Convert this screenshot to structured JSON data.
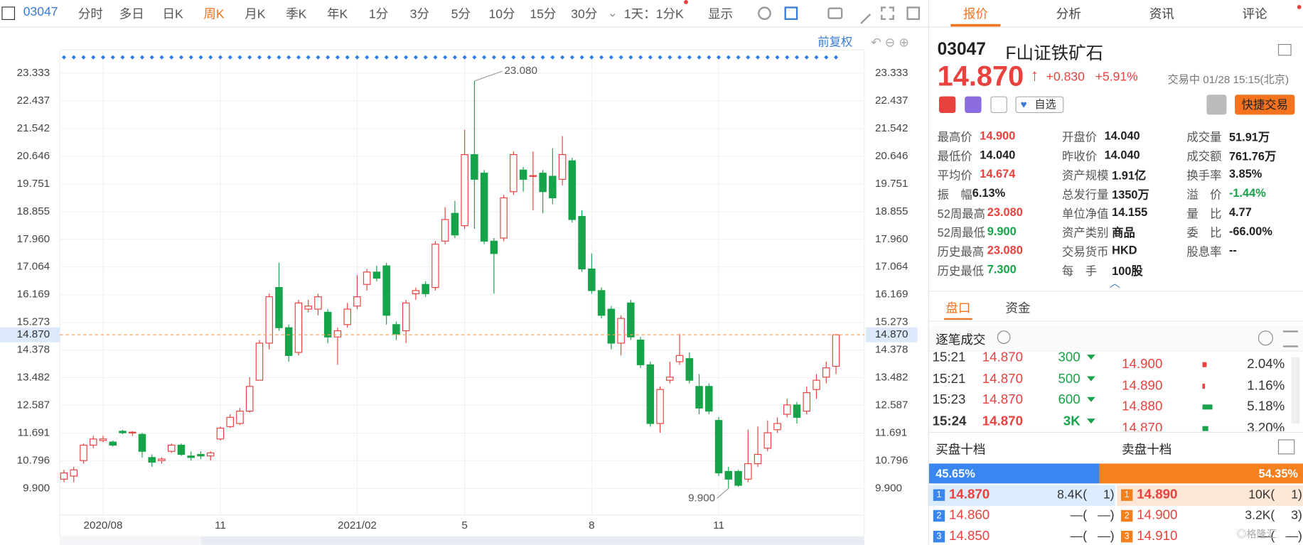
{
  "toolbar": {
    "code": "03047",
    "periods": [
      "分时",
      "多日",
      "日K",
      "周K",
      "月K",
      "季K",
      "年K",
      "1分",
      "3分",
      "5分",
      "10分",
      "15分",
      "30分"
    ],
    "active": "周K",
    "range": "1天：1分K",
    "display": "显示"
  },
  "chart": {
    "type": "candlestick",
    "adjust": "前复权",
    "ylim": [
      9.04,
      23.82
    ],
    "yticks": [
      23.333,
      22.437,
      21.542,
      20.646,
      19.751,
      18.855,
      {
        "value": 17.96,
        "label": "17.960"
      },
      17.064,
      16.169,
      15.273,
      14.378,
      13.482,
      12.587,
      11.691,
      10.796,
      {
        "value": 9.9,
        "label": "9.900"
      }
    ],
    "last": {
      "value": 14.87,
      "label": "14.870"
    },
    "max_label": "23.080",
    "min_label": "9.900",
    "up_color": "#e8413e",
    "down_color": "#17a34a",
    "categories": [
      null,
      null,
      null,
      null,
      "2020/08",
      null,
      null,
      null,
      null,
      null,
      null,
      null,
      null,
      null,
      null,
      null,
      "11",
      null,
      null,
      null,
      null,
      null,
      null,
      null,
      null,
      null,
      null,
      null,
      null,
      null,
      "2021/02",
      null,
      null,
      null,
      null,
      null,
      null,
      null,
      null,
      null,
      null,
      "5",
      null,
      null,
      null,
      null,
      null,
      null,
      null,
      null,
      null,
      null,
      null,
      null,
      "8",
      null,
      null,
      null,
      null,
      null,
      null,
      null,
      null,
      null,
      null,
      null,
      null,
      "11",
      null,
      null,
      null,
      null,
      null,
      null,
      null,
      null,
      null,
      null,
      null,
      null
    ],
    "open": [
      10.2,
      10.3,
      10.8,
      11.3,
      11.45,
      11.4,
      11.75,
      11.7,
      11.65,
      10.9,
      10.8,
      11.1,
      11.3,
      10.95,
      11.0,
      10.95,
      11.5,
      11.9,
      12.0,
      12.4,
      13.4,
      14.6,
      16.4,
      15.1,
      14.3,
      15.7,
      15.7,
      15.6,
      14.8,
      15.2,
      15.8,
      16.5,
      16.9,
      17.1,
      15.2,
      15.0,
      16.2,
      16.5,
      16.4,
      17.9,
      18.8,
      18.4,
      20.7,
      20.1,
      17.9,
      18.0,
      19.5,
      20.2,
      20.0,
      20.1,
      20.0,
      19.9,
      20.5,
      18.7,
      17.0,
      16.3,
      15.7,
      14.6,
      15.9,
      14.7,
      13.9,
      12.0,
      13.4,
      14.0,
      14.1,
      13.2,
      13.2,
      12.1,
      10.45,
      10.45,
      10.2,
      10.7,
      11.2,
      11.8,
      12.3,
      12.6,
      12.4,
      13.1,
      13.5,
      13.85
    ],
    "close": [
      10.4,
      10.5,
      11.3,
      11.5,
      11.5,
      11.3,
      11.7,
      11.72,
      11.1,
      10.75,
      10.85,
      11.3,
      11.0,
      10.9,
      10.95,
      11.05,
      11.85,
      12.2,
      12.4,
      13.2,
      14.6,
      16.1,
      15.1,
      14.2,
      15.9,
      15.8,
      16.1,
      14.8,
      15.0,
      15.7,
      16.1,
      16.9,
      16.7,
      15.5,
      14.9,
      15.9,
      16.3,
      16.2,
      17.8,
      18.6,
      18.1,
      20.7,
      19.9,
      17.9,
      17.5,
      19.3,
      20.7,
      19.9,
      20.02,
      19.5,
      19.3,
      20.7,
      18.6,
      17.0,
      16.3,
      15.5,
      14.6,
      15.4,
      14.8,
      13.9,
      12.0,
      13.1,
      13.5,
      14.2,
      13.4,
      12.5,
      12.4,
      10.4,
      10.2,
      10.0,
      10.7,
      11.0,
      11.7,
      12.0,
      12.6,
      12.2,
      13.0,
      13.4,
      13.8,
      14.87
    ],
    "high": [
      10.5,
      10.6,
      11.35,
      11.6,
      11.6,
      11.45,
      11.8,
      11.75,
      11.7,
      11.0,
      10.9,
      11.35,
      11.35,
      11.1,
      11.1,
      11.1,
      11.9,
      12.3,
      12.5,
      13.5,
      14.7,
      16.2,
      17.2,
      15.2,
      16.0,
      16.0,
      16.2,
      15.7,
      15.1,
      15.9,
      16.8,
      17.0,
      17.1,
      17.2,
      15.3,
      16.0,
      16.4,
      16.6,
      17.9,
      19.0,
      19.2,
      21.5,
      23.08,
      20.2,
      18.0,
      19.4,
      20.8,
      20.3,
      20.8,
      20.2,
      20.9,
      21.3,
      20.6,
      18.9,
      17.5,
      16.4,
      15.8,
      15.5,
      16.0,
      14.8,
      14.0,
      13.2,
      14.0,
      14.9,
      14.3,
      13.6,
      13.3,
      12.2,
      10.6,
      10.5,
      11.8,
      11.9,
      12.1,
      12.2,
      12.8,
      12.7,
      13.2,
      13.6,
      14.0,
      14.9
    ],
    "low": [
      10.1,
      10.1,
      10.7,
      11.2,
      11.4,
      11.25,
      11.65,
      11.6,
      10.9,
      10.6,
      10.7,
      11.05,
      10.95,
      10.8,
      10.85,
      10.8,
      11.45,
      11.85,
      11.95,
      12.35,
      13.4,
      14.4,
      15.0,
      14.0,
      14.2,
      15.6,
      15.5,
      14.6,
      13.9,
      15.1,
      15.7,
      16.3,
      16.6,
      15.2,
      14.7,
      14.6,
      16.0,
      16.1,
      16.3,
      17.8,
      18.0,
      18.3,
      18.3,
      17.8,
      16.2,
      17.9,
      19.4,
      19.5,
      18.9,
      18.8,
      19.1,
      19.7,
      18.5,
      16.9,
      16.2,
      15.4,
      14.4,
      14.2,
      14.7,
      13.8,
      11.9,
      11.7,
      13.3,
      13.9,
      13.3,
      12.3,
      12.3,
      10.3,
      9.9,
      9.95,
      10.1,
      10.6,
      11.1,
      11.7,
      12.2,
      12.0,
      12.3,
      12.8,
      13.3,
      13.6
    ]
  },
  "tabs": [
    "报价",
    "分析",
    "资讯",
    "评论"
  ],
  "active_tab": "报价",
  "quote": {
    "code": "03047",
    "name": "F山证铁矿石",
    "price": "14.870",
    "change": "+0.830",
    "pct": "+5.91%",
    "status": "交易中 01/28 15:15(北京)",
    "watch": "自选",
    "trade": "快捷交易",
    "stats": [
      [
        {
          "label": "最高价",
          "value": "14.900",
          "tone": "up"
        },
        {
          "label": "最低价",
          "value": "14.040"
        },
        {
          "label": "平均价",
          "value": "14.674",
          "tone": "up"
        },
        {
          "label": "振　幅",
          "value": "6.13%"
        },
        {
          "label": "52周最高",
          "value": "23.080",
          "tone": "up"
        },
        {
          "label": "52周最低",
          "value": "9.900",
          "tone": "down"
        },
        {
          "label": "历史最高",
          "value": "23.080",
          "tone": "up"
        },
        {
          "label": "历史最低",
          "value": "7.300",
          "tone": "down"
        }
      ],
      [
        {
          "label": "开盘价",
          "value": "14.040"
        },
        {
          "label": "昨收价",
          "value": "14.040"
        },
        {
          "label": "资产规模",
          "value": "1.91亿"
        },
        {
          "label": "总发行量",
          "value": "1350万"
        },
        {
          "label": "单位净值",
          "value": "14.155"
        },
        {
          "label": "资产类别",
          "value": "商品"
        },
        {
          "label": "交易货币",
          "value": "HKD"
        },
        {
          "label": "每　手",
          "value": "100股"
        }
      ],
      [
        {
          "label": "成交量",
          "value": "51.91万"
        },
        {
          "label": "成交额",
          "value": "761.76万"
        },
        {
          "label": "换手率",
          "value": "3.85%"
        },
        {
          "label": "溢　价",
          "value": "-1.44%",
          "tone": "down"
        },
        {
          "label": "量　比",
          "value": "4.77"
        },
        {
          "label": "委　比",
          "value": "-66.00%"
        },
        {
          "label": "股息率",
          "value": "--"
        }
      ]
    ]
  },
  "subtabs": [
    "盘口",
    "资金"
  ],
  "active_subtab": "盘口",
  "ticks_title": "逐笔成交",
  "trades": [
    [
      "15:21",
      "14.870",
      "300"
    ],
    [
      "15:21",
      "14.870",
      "500"
    ],
    [
      "15:23",
      "14.870",
      "600"
    ],
    [
      "15:24",
      "14.870",
      "3K"
    ]
  ],
  "dist": {
    "prices": [
      "14.900",
      "14.890",
      "14.880",
      "14.870"
    ],
    "values": [
      2.04,
      1.16,
      5.18,
      3.2
    ],
    "value_labels": [
      "2.04%",
      "1.16%",
      "5.18%",
      "3.20%"
    ],
    "colors": [
      "#e8413e",
      "#e8413e",
      "#17a34a",
      "#17a34a"
    ]
  },
  "book": {
    "bid_title": "买盘十档",
    "ask_title": "卖盘十档",
    "bid_ratio": 45.65,
    "ask_ratio": 54.35,
    "ratio_labels": [
      "45.65%",
      "54.35%"
    ],
    "bids": [
      [
        "1",
        "14.870",
        "8.4K(",
        "1)"
      ],
      [
        "2",
        "14.860",
        "—(",
        "—)"
      ],
      [
        "3",
        "14.850",
        "—(",
        "—)"
      ]
    ],
    "asks": [
      [
        "1",
        "14.890",
        "10K(",
        "1)"
      ],
      [
        "2",
        "14.900",
        "3.2K(",
        "3)"
      ],
      [
        "3",
        "14.910",
        "—(",
        "—)"
      ]
    ]
  }
}
